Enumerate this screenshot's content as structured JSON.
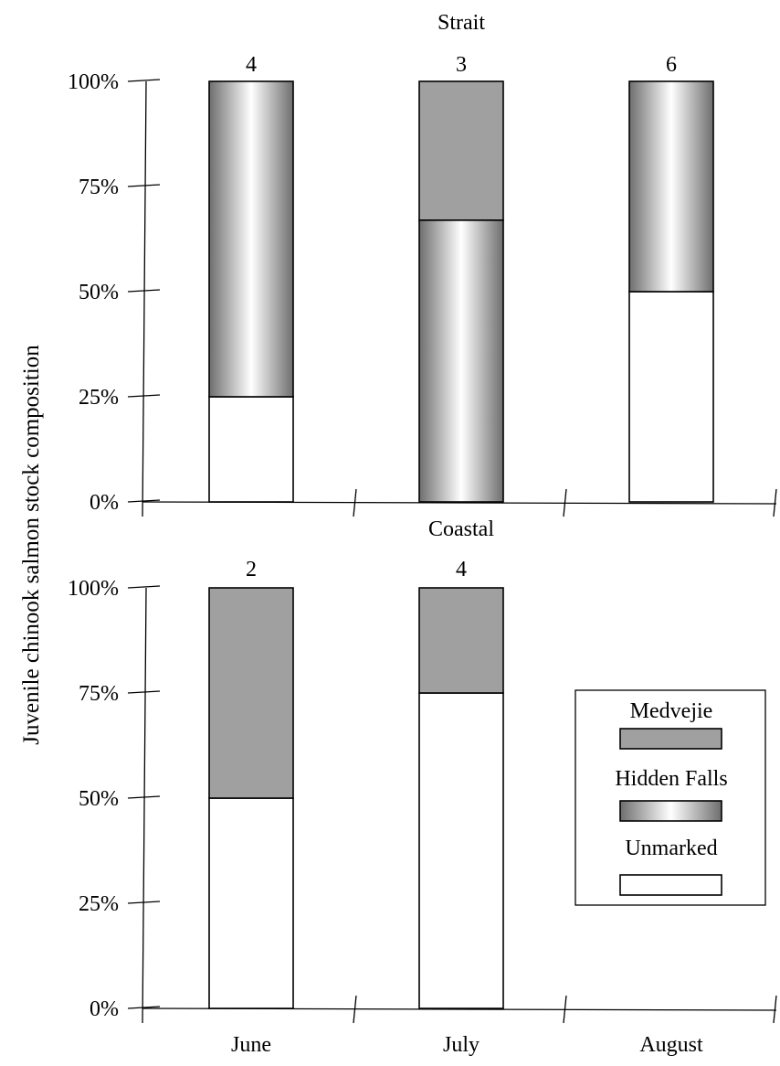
{
  "chart_data": {
    "type": "bar",
    "stacked": true,
    "ylabel": "Juvenile chinook salmon stock composition",
    "categories": [
      "June",
      "July",
      "August"
    ],
    "yticks": [
      "0%",
      "25%",
      "50%",
      "75%",
      "100%"
    ],
    "ylim": [
      0,
      100
    ],
    "legend": {
      "placement": "right, inside lower panel",
      "entries": [
        "Medvejie",
        "Hidden Falls",
        "Unmarked"
      ]
    },
    "colors": {
      "Medvejie": "#a0a0a0",
      "Hidden Falls": "gradient #6e6e6e to #ffffff",
      "Unmarked": "#ffffff"
    },
    "panels": [
      {
        "title": "Strait",
        "counts": [
          "4",
          "3",
          "6"
        ],
        "series": [
          {
            "name": "Unmarked",
            "values": [
              25,
              0,
              50
            ]
          },
          {
            "name": "Hidden Falls",
            "values": [
              75,
              67,
              50
            ]
          },
          {
            "name": "Medvejie",
            "values": [
              0,
              33,
              0
            ]
          }
        ]
      },
      {
        "title": "Coastal",
        "counts": [
          "2",
          "4",
          ""
        ],
        "series": [
          {
            "name": "Unmarked",
            "values": [
              50,
              75,
              0
            ]
          },
          {
            "name": "Hidden Falls",
            "values": [
              0,
              0,
              0
            ]
          },
          {
            "name": "Medvejie",
            "values": [
              50,
              25,
              0
            ]
          }
        ]
      }
    ]
  }
}
